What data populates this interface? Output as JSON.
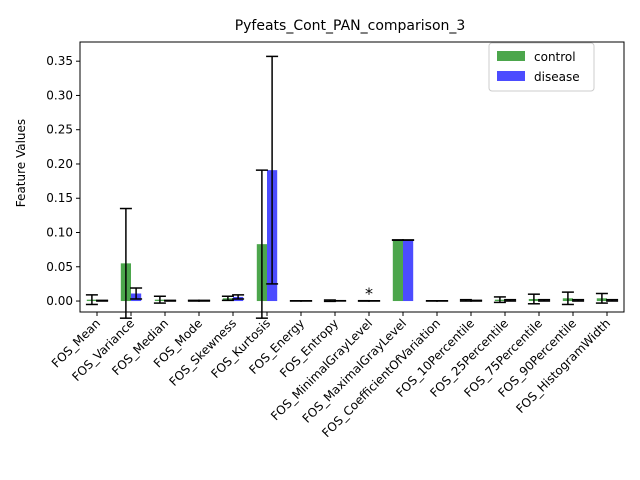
{
  "chart_data": {
    "type": "bar",
    "title": "Pyfeats_Cont_PAN_comparison_3",
    "xlabel": "",
    "ylabel": "Feature Values",
    "ylim": [
      -0.016,
      0.378
    ],
    "yticks": [
      0.0,
      0.05,
      0.1,
      0.15,
      0.2,
      0.25,
      0.3,
      0.35
    ],
    "ytick_labels": [
      "0.00",
      "0.05",
      "0.10",
      "0.15",
      "0.20",
      "0.25",
      "0.30",
      "0.35"
    ],
    "grid": false,
    "legend_position": "top-right",
    "categories": [
      "FOS_Mean",
      "FOS_Variance",
      "FOS_Median",
      "FOS_Mode",
      "FOS_Skewness",
      "FOS_Kurtosis",
      "FOS_Energy",
      "FOS_Entropy",
      "FOS_MinimalGrayLevel",
      "FOS_MaximalGrayLevel",
      "FOS_CoefficientOfVariation",
      "FOS_10Percentile",
      "FOS_25Percentile",
      "FOS_75Percentile",
      "FOS_90Percentile",
      "FOS_HistogramWidth"
    ],
    "series": [
      {
        "name": "control",
        "color": "#4ca64c",
        "values": [
          0.002,
          0.055,
          0.002,
          0.0005,
          0.004,
          0.083,
          0.0002,
          0.0005,
          0.0002,
          0.089,
          0.0002,
          0.001,
          0.002,
          0.003,
          0.004,
          0.004
        ],
        "errors": [
          0.007,
          0.08,
          0.005,
          0.0005,
          0.003,
          0.108,
          0.0002,
          0.001,
          0.0003,
          0.0003,
          0.0002,
          0.001,
          0.004,
          0.007,
          0.009,
          0.007
        ]
      },
      {
        "name": "disease",
        "color": "#4c4cff",
        "values": [
          0.0005,
          0.011,
          0.0005,
          0.0005,
          0.006,
          0.191,
          0.0002,
          0.0003,
          0.0002,
          0.089,
          0.0002,
          0.0005,
          0.001,
          0.001,
          0.001,
          0.001
        ],
        "errors": [
          0.0005,
          0.008,
          0.0005,
          0.0005,
          0.003,
          0.166,
          0.0002,
          0.0002,
          0.0002,
          0.0002,
          0.0002,
          0.0005,
          0.001,
          0.001,
          0.001,
          0.001
        ]
      }
    ],
    "annotations": [
      {
        "text": "*",
        "category_index": 8,
        "y": 0.003
      }
    ]
  }
}
